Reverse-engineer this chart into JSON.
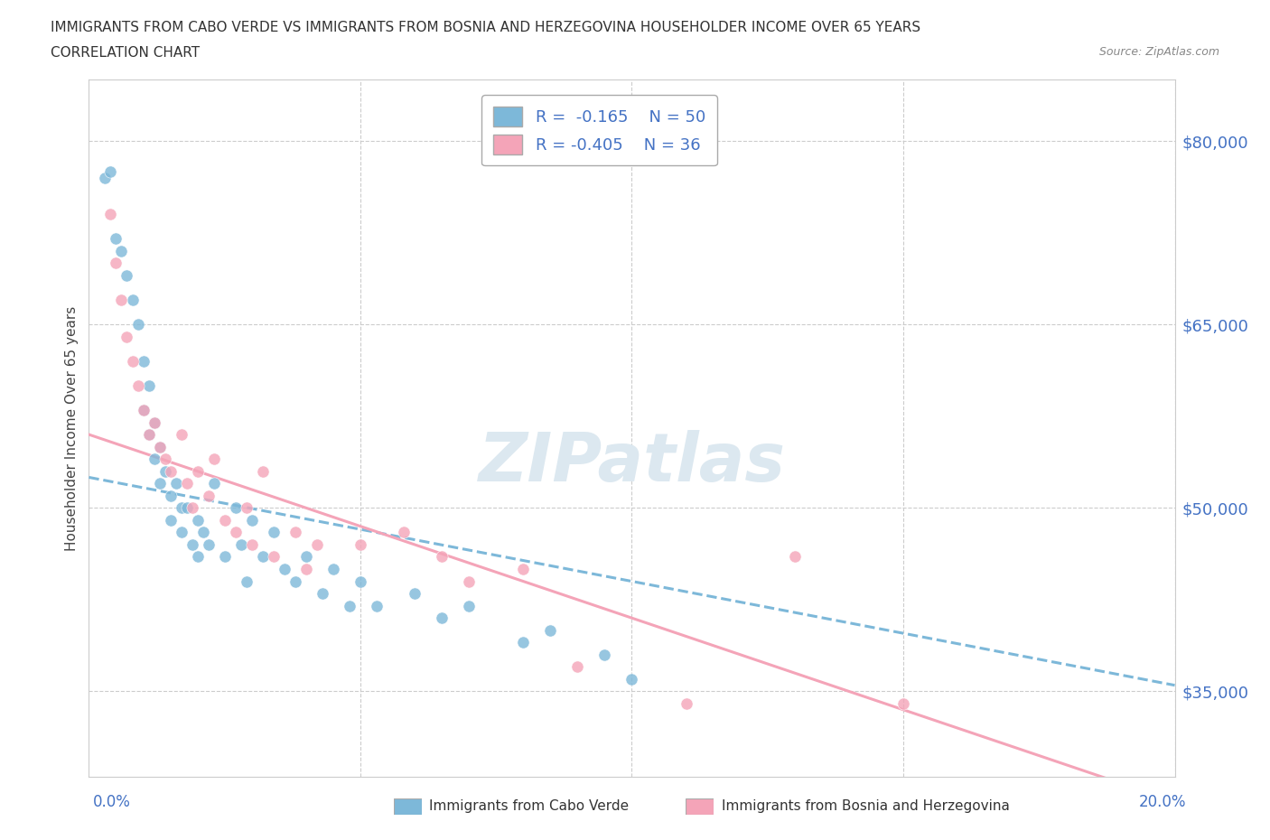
{
  "title_line1": "IMMIGRANTS FROM CABO VERDE VS IMMIGRANTS FROM BOSNIA AND HERZEGOVINA HOUSEHOLDER INCOME OVER 65 YEARS",
  "title_line2": "CORRELATION CHART",
  "source": "Source: ZipAtlas.com",
  "ylabel": "Householder Income Over 65 years",
  "xlim": [
    0.0,
    0.2
  ],
  "ylim": [
    28000,
    85000
  ],
  "yticks": [
    35000,
    50000,
    65000,
    80000
  ],
  "ytick_labels": [
    "$35,000",
    "$50,000",
    "$65,000",
    "$80,000"
  ],
  "color_cabo": "#7db8d9",
  "color_bosnia": "#f4a4b8",
  "color_text_blue": "#4472c4",
  "R_cabo": -0.165,
  "N_cabo": 50,
  "R_bosnia": -0.405,
  "N_bosnia": 36,
  "cabo_x": [
    0.003,
    0.004,
    0.005,
    0.006,
    0.007,
    0.008,
    0.009,
    0.01,
    0.01,
    0.011,
    0.011,
    0.012,
    0.012,
    0.013,
    0.013,
    0.014,
    0.015,
    0.015,
    0.016,
    0.017,
    0.017,
    0.018,
    0.019,
    0.02,
    0.02,
    0.021,
    0.022,
    0.023,
    0.025,
    0.027,
    0.028,
    0.029,
    0.03,
    0.032,
    0.034,
    0.036,
    0.038,
    0.04,
    0.043,
    0.045,
    0.048,
    0.05,
    0.053,
    0.06,
    0.065,
    0.07,
    0.08,
    0.085,
    0.095,
    0.1
  ],
  "cabo_y": [
    77000,
    77500,
    72000,
    71000,
    69000,
    67000,
    65000,
    62000,
    58000,
    60000,
    56000,
    57000,
    54000,
    55000,
    52000,
    53000,
    51000,
    49000,
    52000,
    50000,
    48000,
    50000,
    47000,
    49000,
    46000,
    48000,
    47000,
    52000,
    46000,
    50000,
    47000,
    44000,
    49000,
    46000,
    48000,
    45000,
    44000,
    46000,
    43000,
    45000,
    42000,
    44000,
    42000,
    43000,
    41000,
    42000,
    39000,
    40000,
    38000,
    36000
  ],
  "bosnia_x": [
    0.004,
    0.005,
    0.006,
    0.007,
    0.008,
    0.009,
    0.01,
    0.011,
    0.012,
    0.013,
    0.014,
    0.015,
    0.017,
    0.018,
    0.019,
    0.02,
    0.022,
    0.023,
    0.025,
    0.027,
    0.029,
    0.03,
    0.032,
    0.034,
    0.038,
    0.04,
    0.042,
    0.05,
    0.058,
    0.065,
    0.07,
    0.08,
    0.09,
    0.11,
    0.13,
    0.15
  ],
  "bosnia_y": [
    74000,
    70000,
    67000,
    64000,
    62000,
    60000,
    58000,
    56000,
    57000,
    55000,
    54000,
    53000,
    56000,
    52000,
    50000,
    53000,
    51000,
    54000,
    49000,
    48000,
    50000,
    47000,
    53000,
    46000,
    48000,
    45000,
    47000,
    47000,
    48000,
    46000,
    44000,
    45000,
    37000,
    34000,
    46000,
    34000
  ],
  "watermark": "ZIPatlas",
  "background_color": "#ffffff",
  "grid_color": "#cccccc",
  "trend_cabo_intercept": 52500,
  "trend_cabo_slope": -85000,
  "trend_bosnia_intercept": 56000,
  "trend_bosnia_slope": -150000
}
